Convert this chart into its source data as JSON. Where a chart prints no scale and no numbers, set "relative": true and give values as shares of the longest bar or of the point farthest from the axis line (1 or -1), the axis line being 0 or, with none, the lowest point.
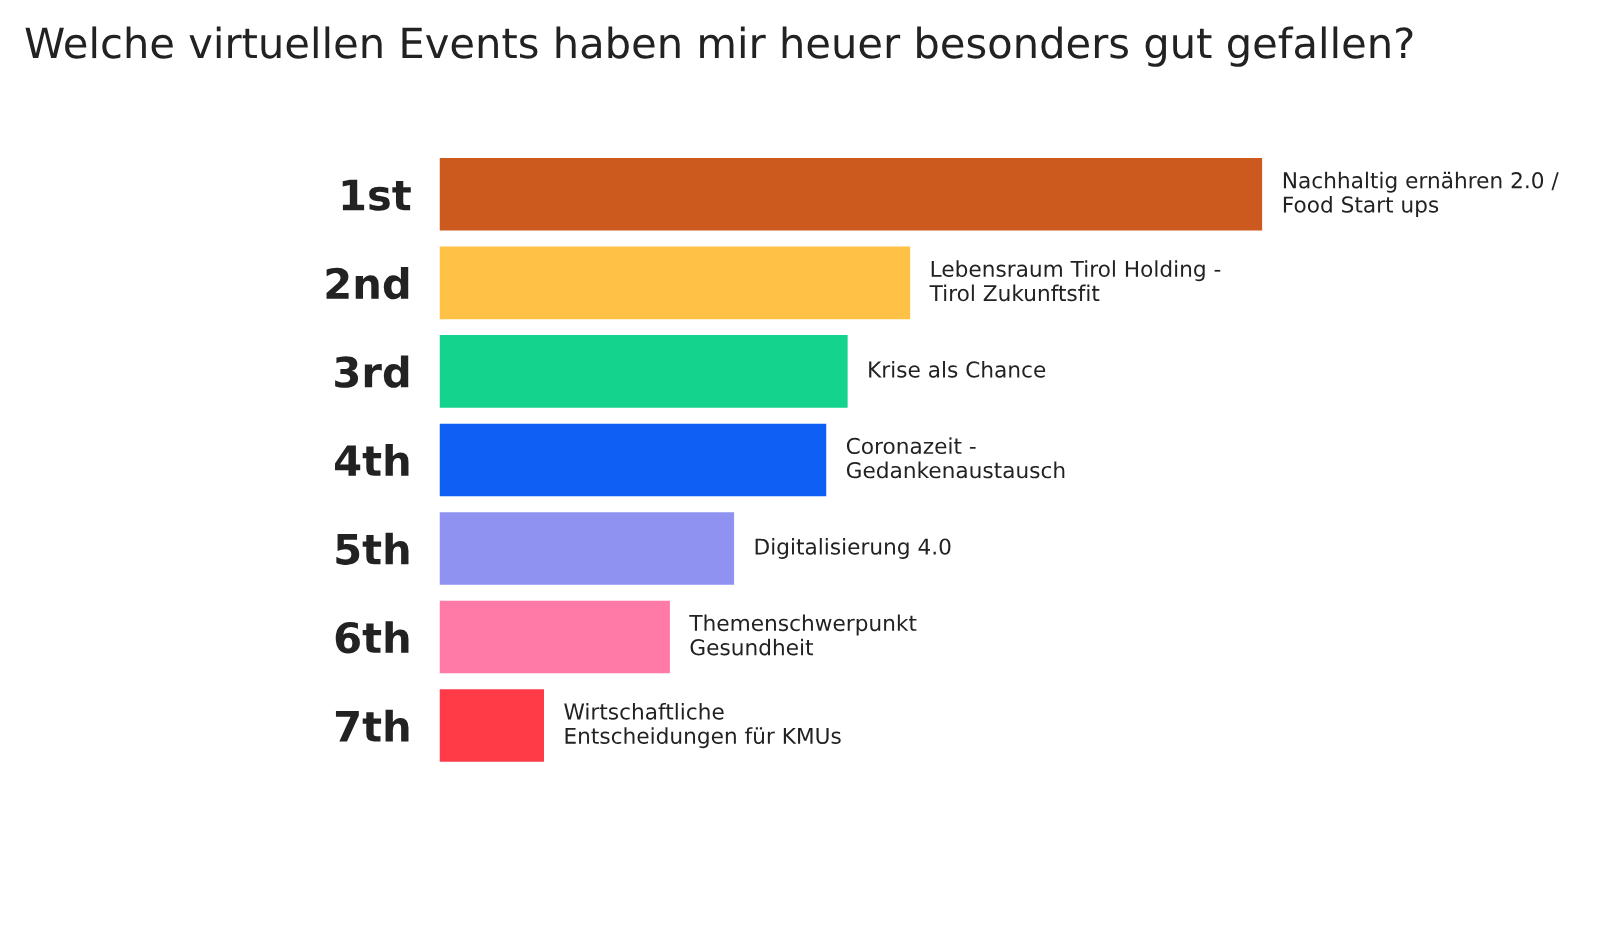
{
  "chart_data": {
    "type": "bar",
    "orientation": "horizontal",
    "relative": true,
    "title": "Welche virtuellen Events haben mir heuer besonders gut gefallen?",
    "categories": [
      "1st",
      "2nd",
      "3rd",
      "4th",
      "5th",
      "6th",
      "7th"
    ],
    "values": [
      1,
      0.572,
      0.496,
      0.47,
      0.358,
      0.28,
      0.127
    ],
    "colors": [
      "#cc5a1e",
      "#ffc247",
      "#14d38c",
      "#0f5ff5",
      "#8f92f0",
      "#ff7aa7",
      "#ff3b47"
    ],
    "annotations": [
      {
        "text": "Nachhaltig ernähren 2.0 /\nFood Start ups",
        "x": 1,
        "y": "1st"
      },
      {
        "text": "Lebensraum Tirol Holding -\nTirol Zukunftsfit",
        "x": 0.572,
        "y": "2nd"
      },
      {
        "text": "Krise als Chance",
        "x": 0.496,
        "y": "3rd"
      },
      {
        "text": "Coronazeit -\nGedankenaustausch",
        "x": 0.47,
        "y": "4th"
      },
      {
        "text": "Digitalisierung 4.0",
        "x": 0.358,
        "y": "5th"
      },
      {
        "text": "Themenschwerpunkt\nGesundheit",
        "x": 0.28,
        "y": "6th"
      },
      {
        "text": "Wirtschaftliche\nEntscheidungen für KMUs",
        "x": 0.127,
        "y": "7th"
      }
    ],
    "grid": false,
    "legend": false
  }
}
